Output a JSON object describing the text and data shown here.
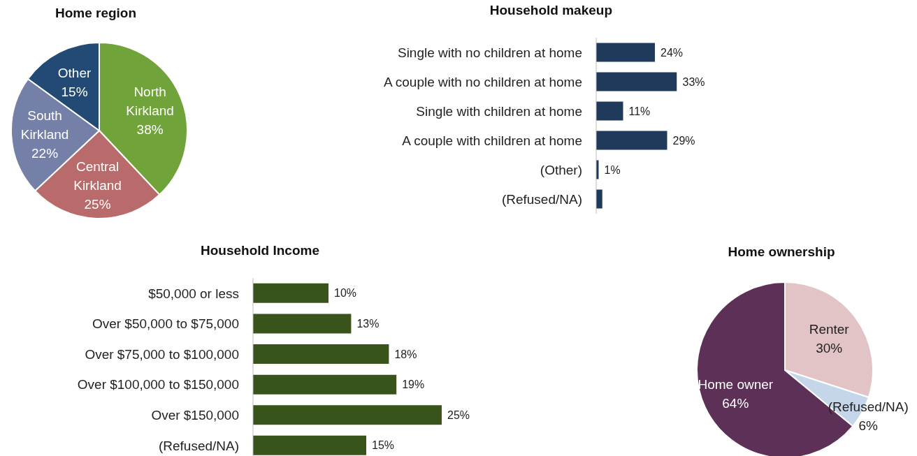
{
  "chart_data": [
    {
      "type": "pie",
      "title": "Home region",
      "categories": [
        "North Kirkland",
        "Central Kirkland",
        "South Kirkland",
        "Other"
      ],
      "values": [
        38,
        25,
        22,
        15
      ],
      "colors": [
        "#70a33a",
        "#b96a6a",
        "#7580a8",
        "#224a74"
      ],
      "value_labels": [
        "38%",
        "25%",
        "22%",
        "15%"
      ]
    },
    {
      "type": "bar",
      "orientation": "horizontal",
      "title": "Household makeup",
      "categories": [
        "Single with no children at home",
        "A couple with no children at home",
        "Single with children at home",
        "A couple with children at home",
        "(Other)",
        "(Refused/NA)"
      ],
      "values": [
        24,
        33,
        11,
        29,
        1,
        2.5
      ],
      "color": "#1f3a5a",
      "value_labels": [
        "24%",
        "33%",
        "11%",
        "29%",
        "1%",
        null
      ]
    },
    {
      "type": "bar",
      "orientation": "horizontal",
      "title": "Household Income",
      "categories": [
        "$50,000 or less",
        "Over $50,000 to $75,000",
        "Over $75,000 to $100,000",
        "Over $100,000 to $150,000",
        "Over $150,000",
        "(Refused/NA)"
      ],
      "values": [
        10,
        13,
        18,
        19,
        25,
        15
      ],
      "color": "#38541b",
      "value_labels": [
        "10%",
        "13%",
        "18%",
        "19%",
        "25%",
        "15%"
      ]
    },
    {
      "type": "pie",
      "title": "Home ownership",
      "categories": [
        "Renter",
        "(Refused/NA)",
        "Home owner"
      ],
      "values": [
        30,
        6,
        64
      ],
      "colors": [
        "#e2c4c6",
        "#c5d6ea",
        "#5c3057"
      ],
      "value_labels": [
        "30%",
        "6%",
        "64%"
      ]
    }
  ]
}
